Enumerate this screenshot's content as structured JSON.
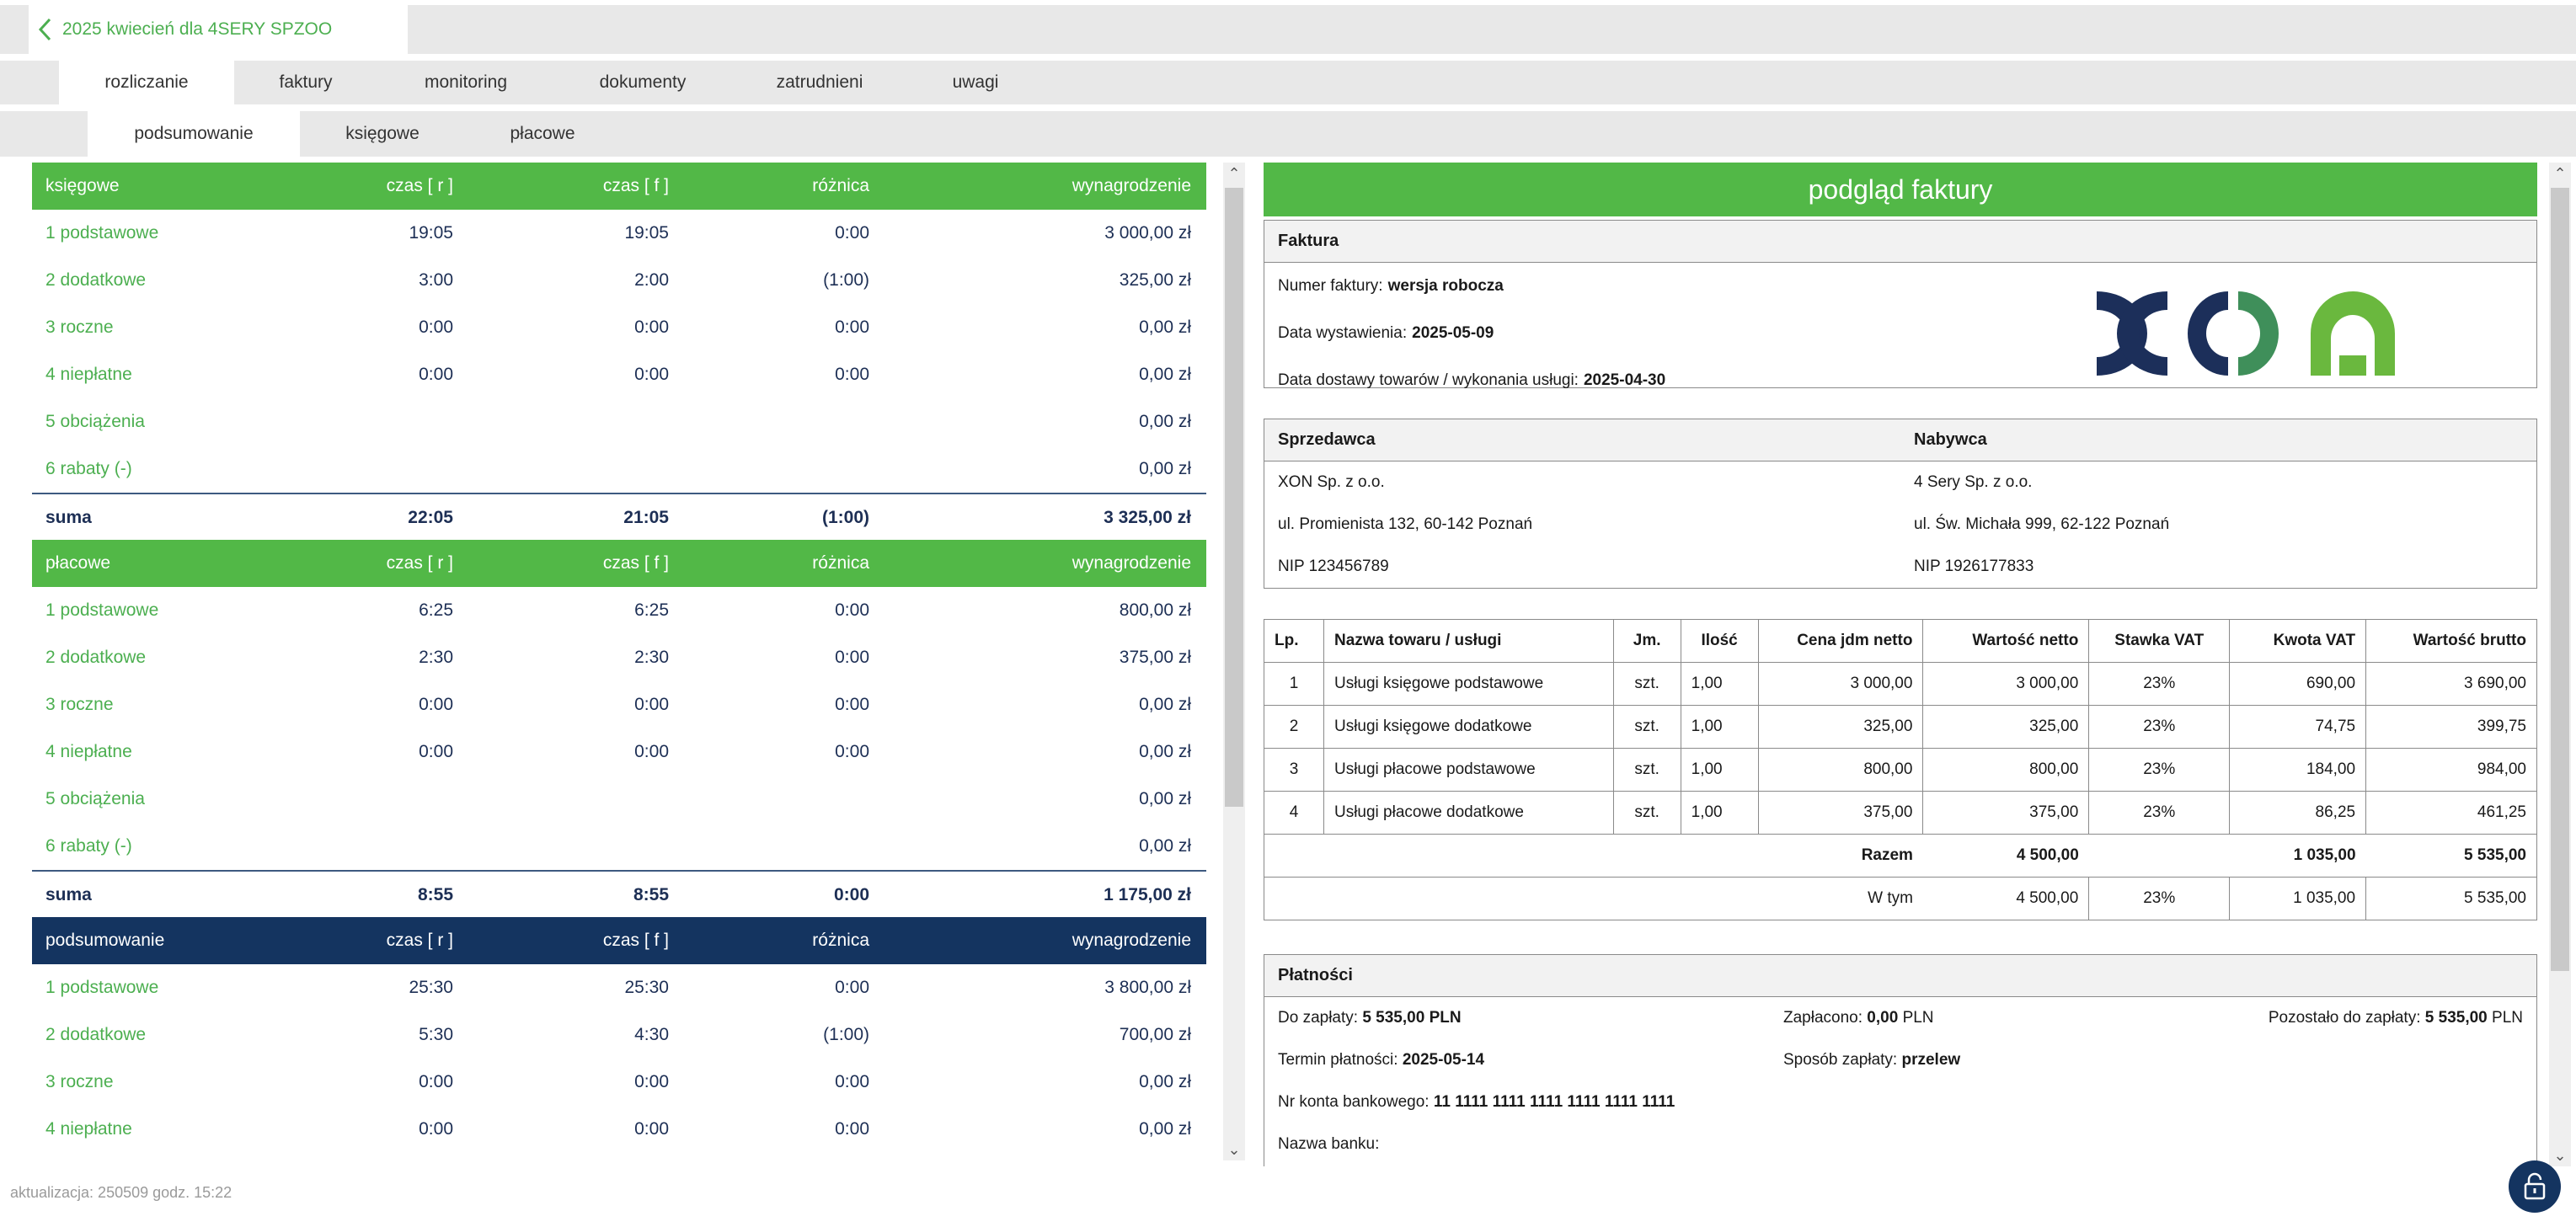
{
  "header": {
    "title": "2025 kwiecień dla 4SERY SPZOO"
  },
  "tabs": [
    {
      "label": "rozliczanie",
      "active": true
    },
    {
      "label": "faktury"
    },
    {
      "label": "monitoring"
    },
    {
      "label": "dokumenty"
    },
    {
      "label": "zatrudnieni"
    },
    {
      "label": "uwagi"
    }
  ],
  "subtabs": [
    {
      "label": "podsumowanie",
      "active": true
    },
    {
      "label": "księgowe"
    },
    {
      "label": "płacowe"
    }
  ],
  "sections": [
    {
      "title": "księgowe",
      "color": "green",
      "cols": [
        "czas [ r ]",
        "czas [ f ]",
        "różnica",
        "wynagrodzenie"
      ],
      "rows": [
        [
          "1 podstawowe",
          "19:05",
          "19:05",
          "0:00",
          "3 000,00 zł"
        ],
        [
          "2 dodatkowe",
          "3:00",
          "2:00",
          "(1:00)",
          "325,00 zł"
        ],
        [
          "3 roczne",
          "0:00",
          "0:00",
          "0:00",
          "0,00 zł"
        ],
        [
          "4 niepłatne",
          "0:00",
          "0:00",
          "0:00",
          "0,00 zł"
        ],
        [
          "5 obciążenia",
          "",
          "",
          "",
          "0,00 zł"
        ],
        [
          "6 rabaty (-)",
          "",
          "",
          "",
          "0,00 zł"
        ]
      ],
      "sum": [
        "suma",
        "22:05",
        "21:05",
        "(1:00)",
        "3 325,00 zł"
      ]
    },
    {
      "title": "płacowe",
      "color": "green",
      "cols": [
        "czas [ r ]",
        "czas [ f ]",
        "różnica",
        "wynagrodzenie"
      ],
      "rows": [
        [
          "1 podstawowe",
          "6:25",
          "6:25",
          "0:00",
          "800,00 zł"
        ],
        [
          "2 dodatkowe",
          "2:30",
          "2:30",
          "0:00",
          "375,00 zł"
        ],
        [
          "3 roczne",
          "0:00",
          "0:00",
          "0:00",
          "0,00 zł"
        ],
        [
          "4 niepłatne",
          "0:00",
          "0:00",
          "0:00",
          "0,00 zł"
        ],
        [
          "5 obciążenia",
          "",
          "",
          "",
          "0,00 zł"
        ],
        [
          "6 rabaty (-)",
          "",
          "",
          "",
          "0,00 zł"
        ]
      ],
      "sum": [
        "suma",
        "8:55",
        "8:55",
        "0:00",
        "1 175,00 zł"
      ]
    },
    {
      "title": "podsumowanie",
      "color": "navy",
      "cols": [
        "czas [ r ]",
        "czas [ f ]",
        "różnica",
        "wynagrodzenie"
      ],
      "rows": [
        [
          "1 podstawowe",
          "25:30",
          "25:30",
          "0:00",
          "3 800,00 zł"
        ],
        [
          "2 dodatkowe",
          "5:30",
          "4:30",
          "(1:00)",
          "700,00 zł"
        ],
        [
          "3 roczne",
          "0:00",
          "0:00",
          "0:00",
          "0,00 zł"
        ],
        [
          "4 niepłatne",
          "0:00",
          "0:00",
          "0:00",
          "0,00 zł"
        ]
      ],
      "sum": null
    }
  ],
  "invoice": {
    "header": "podgląd faktury",
    "faktura_title": "Faktura",
    "numer_label": "Numer faktury:",
    "numer_value": "wersja robocza",
    "data_wyst_label": "Data wystawienia:",
    "data_wyst_value": "2025-05-09",
    "data_dost_label": "Data dostawy towarów / wykonania usługi:",
    "data_dost_value": "2025-04-30",
    "seller": {
      "title": "Sprzedawca",
      "name": "XON Sp. z o.o.",
      "address": "ul. Promienista 132, 60-142 Poznań",
      "nip": "NIP 123456789"
    },
    "buyer": {
      "title": "Nabywca",
      "name": "4 Sery Sp. z o.o.",
      "address": "ul. Św. Michała 999, 62-122 Poznań",
      "nip": "NIP 1926177833"
    },
    "table_headers": [
      "Lp.",
      "Nazwa towaru / usługi",
      "Jm.",
      "Ilość",
      "Cena jdm netto",
      "Wartość netto",
      "Stawka VAT",
      "Kwota VAT",
      "Wartość brutto"
    ],
    "items": [
      [
        "1",
        "Usługi księgowe podstawowe",
        "szt.",
        "1,00",
        "3 000,00",
        "3 000,00",
        "23%",
        "690,00",
        "3 690,00"
      ],
      [
        "2",
        "Usługi księgowe dodatkowe",
        "szt.",
        "1,00",
        "325,00",
        "325,00",
        "23%",
        "74,75",
        "399,75"
      ],
      [
        "3",
        "Usługi płacowe podstawowe",
        "szt.",
        "1,00",
        "800,00",
        "800,00",
        "23%",
        "184,00",
        "984,00"
      ],
      [
        "4",
        "Usługi płacowe dodatkowe",
        "szt.",
        "1,00",
        "375,00",
        "375,00",
        "23%",
        "86,25",
        "461,25"
      ]
    ],
    "razem": {
      "label": "Razem",
      "netto": "4 500,00",
      "vat": "1 035,00",
      "brutto": "5 535,00"
    },
    "wtym": {
      "label": "W tym",
      "netto": "4 500,00",
      "stawka": "23%",
      "vat": "1 035,00",
      "brutto": "5 535,00"
    },
    "payments": {
      "title": "Płatności",
      "do_zaplaty_label": "Do zapłaty:",
      "do_zaplaty_value": "5 535,00 PLN",
      "zaplacono_label": "Zapłacono:",
      "zaplacono_value": "0,00",
      "zaplacono_currency": "PLN",
      "pozostalo_label": "Pozostało do zapłaty:",
      "pozostalo_value": "5 535,00",
      "pozostalo_currency": "PLN",
      "termin_label": "Termin płatności:",
      "termin_value": "2025-05-14",
      "sposob_label": "Sposób zapłaty:",
      "sposob_value": "przelew",
      "konto_label": "Nr konta bankowego:",
      "konto_value": "11 1111 1111 1111 1111 1111 1111",
      "bank_label": "Nazwa banku:"
    }
  },
  "status": "aktualizacja: 250509 godz. 15:22",
  "colors": {
    "green": "#52b847",
    "navy": "#143460",
    "link_green": "#4caf50"
  }
}
